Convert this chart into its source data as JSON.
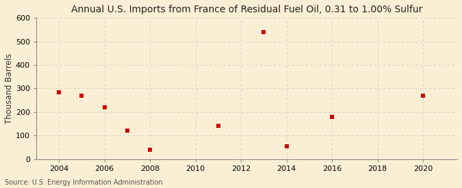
{
  "title": "Annual U.S. Imports from France of Residual Fuel Oil, 0.31 to 1.00% Sulfur",
  "ylabel": "Thousand Barrels",
  "source": "Source: U.S. Energy Information Administration",
  "years": [
    2004,
    2005,
    2006,
    2007,
    2008,
    2011,
    2013,
    2014,
    2016,
    2020
  ],
  "values": [
    285,
    270,
    220,
    120,
    40,
    140,
    540,
    55,
    180,
    270
  ],
  "xlim": [
    2003.0,
    2021.5
  ],
  "ylim": [
    0,
    600
  ],
  "yticks": [
    0,
    100,
    200,
    300,
    400,
    500,
    600
  ],
  "xticks": [
    2004,
    2006,
    2008,
    2010,
    2012,
    2014,
    2016,
    2018,
    2020
  ],
  "marker_color": "#cc0000",
  "marker": "s",
  "marker_size": 4,
  "bg_color": "#faefd4",
  "grid_color": "#c8c8c8",
  "title_fontsize": 10,
  "label_fontsize": 8.5,
  "tick_fontsize": 8,
  "source_fontsize": 7
}
